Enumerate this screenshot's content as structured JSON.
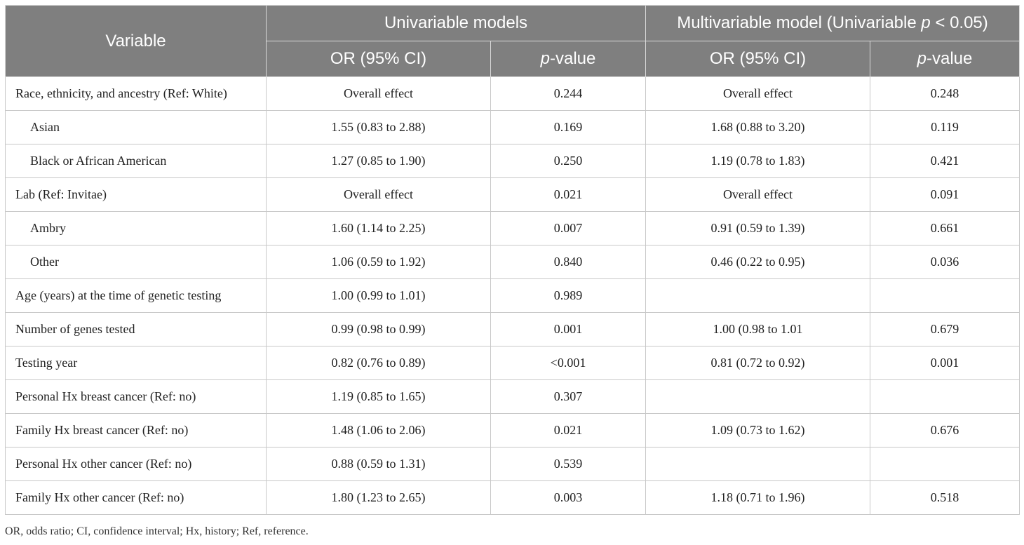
{
  "header": {
    "variable": "Variable",
    "univariable": "Univariable models",
    "multivariable_prefix": "Multivariable model (Univariable ",
    "multivariable_p": "p",
    "multivariable_suffix": " < 0.05)",
    "or_ci": "OR (95% CI)",
    "p_italic": "p",
    "p_suffix": "-value"
  },
  "rows": [
    {
      "variable": "Race, ethnicity, and ancestry (Ref: White)",
      "sub": false,
      "uni_or": "Overall effect",
      "uni_p": "0.244",
      "multi_or": "Overall effect",
      "multi_p": "0.248"
    },
    {
      "variable": "Asian",
      "sub": true,
      "uni_or": "1.55 (0.83 to 2.88)",
      "uni_p": "0.169",
      "multi_or": "1.68 (0.88 to 3.20)",
      "multi_p": "0.119"
    },
    {
      "variable": "Black or African American",
      "sub": true,
      "uni_or": "1.27 (0.85 to 1.90)",
      "uni_p": "0.250",
      "multi_or": "1.19 (0.78 to 1.83)",
      "multi_p": "0.421"
    },
    {
      "variable": "Lab (Ref: Invitae)",
      "sub": false,
      "uni_or": "Overall effect",
      "uni_p": "0.021",
      "multi_or": "Overall effect",
      "multi_p": "0.091"
    },
    {
      "variable": "Ambry",
      "sub": true,
      "uni_or": "1.60 (1.14 to 2.25)",
      "uni_p": "0.007",
      "multi_or": "0.91 (0.59 to 1.39)",
      "multi_p": "0.661"
    },
    {
      "variable": "Other",
      "sub": true,
      "uni_or": "1.06 (0.59 to 1.92)",
      "uni_p": "0.840",
      "multi_or": "0.46 (0.22 to 0.95)",
      "multi_p": "0.036"
    },
    {
      "variable": "Age (years) at the time of genetic testing",
      "sub": false,
      "uni_or": "1.00 (0.99 to 1.01)",
      "uni_p": "0.989",
      "multi_or": "",
      "multi_p": ""
    },
    {
      "variable": "Number of genes tested",
      "sub": false,
      "uni_or": "0.99 (0.98 to 0.99)",
      "uni_p": "0.001",
      "multi_or": "1.00 (0.98 to 1.01",
      "multi_p": "0.679"
    },
    {
      "variable": "Testing year",
      "sub": false,
      "uni_or": "0.82 (0.76 to 0.89)",
      "uni_p": "<0.001",
      "multi_or": "0.81 (0.72 to 0.92)",
      "multi_p": "0.001"
    },
    {
      "variable": "Personal Hx breast cancer (Ref: no)",
      "sub": false,
      "uni_or": "1.19 (0.85 to 1.65)",
      "uni_p": "0.307",
      "multi_or": "",
      "multi_p": ""
    },
    {
      "variable": "Family Hx breast cancer (Ref: no)",
      "sub": false,
      "uni_or": "1.48 (1.06 to 2.06)",
      "uni_p": "0.021",
      "multi_or": "1.09 (0.73 to 1.62)",
      "multi_p": "0.676"
    },
    {
      "variable": "Personal Hx other cancer (Ref: no)",
      "sub": false,
      "uni_or": "0.88 (0.59 to 1.31)",
      "uni_p": "0.539",
      "multi_or": "",
      "multi_p": ""
    },
    {
      "variable": "Family Hx other cancer (Ref: no)",
      "sub": false,
      "uni_or": "1.80 (1.23 to 2.65)",
      "uni_p": "0.003",
      "multi_or": "1.18 (0.71 to 1.96)",
      "multi_p": "0.518"
    }
  ],
  "footnote": "OR, odds ratio; CI, confidence interval; Hx, history; Ref, reference."
}
